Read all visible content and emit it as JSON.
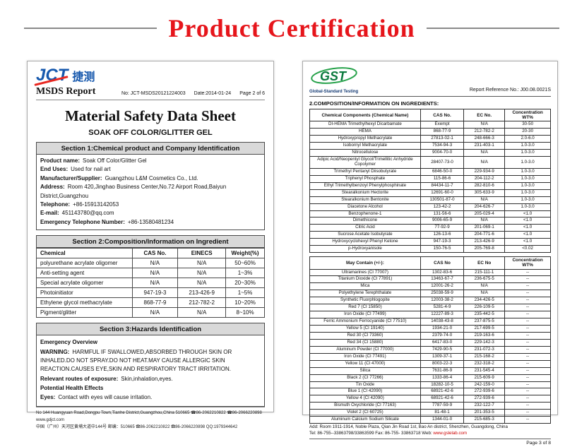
{
  "page": {
    "title": "Product Certification"
  },
  "left_doc": {
    "logo": {
      "jct": "JCT",
      "cn": "捷测"
    },
    "report_name": "MSDS Report",
    "meta": {
      "no": "No:  JCT-MSDS20121224003",
      "date": "Date:2014-01-24",
      "page": "Page 2 of 6"
    },
    "title": "Material Safety Data Sheet",
    "subtitle": "SOAK OFF COLOR/GLITTER GEL",
    "section1": {
      "header": "Section 1:Chemical product and Company Identification",
      "fields": [
        {
          "label": "Product name:",
          "value": "Soak Off Color/Glitter Gel"
        },
        {
          "label": "End Uses:",
          "value": "Used for nail art"
        },
        {
          "label": "Manufacturer/Supplier:",
          "value": "Guangzhou L&M Cosmetics Co., Ltd."
        },
        {
          "label": "Address:",
          "value": "Room 420,Jinghao Business Center,No.72 Airport Road,Baiyun District,Guangzhou"
        },
        {
          "label": "Telephone:",
          "value": "+86-15913142053"
        },
        {
          "label": "E-mail:",
          "value": "451143780@qq.com"
        },
        {
          "label": "Emergency Telephone Number:",
          "value": "+86-13580481234"
        }
      ]
    },
    "section2": {
      "header": "Section 2:Composition/Information on Ingredient",
      "table": {
        "headers": [
          "Chemical",
          "CAS No.",
          "EINECS",
          "Weight(%)"
        ],
        "rows": [
          [
            "polyurethane acrylate oligomer",
            "N/A",
            "N/A",
            "50~60%"
          ],
          [
            "Anti-setting agent",
            "N/A",
            "N/A",
            "1~3%"
          ],
          [
            "Special acrylate oligomer",
            "N/A",
            "N/A",
            "20~30%"
          ],
          [
            "Photoinitiator",
            "947-19-3",
            "213-426-9",
            "1~5%"
          ],
          [
            "Ethylene glycol methacrylate",
            "868-77-9",
            "212-782-2",
            "10~20%"
          ],
          [
            "Pigment/glitter",
            "N/A",
            "N/A",
            "8~10%"
          ]
        ]
      }
    },
    "section3": {
      "header": "Section 3:Hazards Identification",
      "lines": [
        {
          "label": "Emergency Overview",
          "value": ""
        },
        {
          "label": "WARNING:",
          "value": "HARMFUL IF SWALLOWED,ABSORBED THROUGH SKIN OR INHALED.DO NOT SPRAY.DO NOT HEAT.MAY CAUSE ALLERGIC SKIN REACTION.CAUSES EYE,SKIN AND RESPIRATORY TRACT IRRITATION."
        },
        {
          "label": "Relevant routes of exposure:",
          "value": "Skin,inhalation,eyes."
        },
        {
          "label": "Potential Health Effects",
          "value": ""
        },
        {
          "label": "Eyes:",
          "value": "Contact with eyes will cause irritation."
        }
      ]
    },
    "footer": {
      "line1": "No 144 Huangyuan Road,Dongpu Town,Tianhe District,Guangzhou,China 510665    ☎86-2062210822    ☎86-2066220898    www.gdjct.com",
      "line2": "中国（广州）天河区黄埔大道中144号  邮编：510665  ☎86-2062210822  ☎86-2066220898  QQ:1979344642"
    }
  },
  "right_doc": {
    "logo": {
      "text": "GST",
      "subtitle": "Global-Standard Testing"
    },
    "ref_no": "Report Reference No.: J00.08.0021S",
    "section_title": "2.COMPOSITION/INFORMATION ON INGREDIENTS:",
    "table1": {
      "headers": [
        "Chemical Components (Chemical Name)",
        "CAS No.",
        "EC No.",
        "Concentration WT%"
      ],
      "rows": [
        [
          "DI-HEMA Trimethylhexyl Dicarbamate",
          "Exempt",
          "N/A",
          "30-50"
        ],
        [
          "HEMA",
          "868-77-9",
          "212-782-2",
          "20-30"
        ],
        [
          "Hydroxypropyl Methacrylate",
          "27813-02-1",
          "248-666-3",
          "2.0-6.0"
        ],
        [
          "Isobornyl Methacrylate",
          "7534-94-3",
          "231-403-1",
          "1.0-3.0"
        ],
        [
          "Nitrocellulose",
          "9004-70-0",
          "N/A",
          "1.0-3.0"
        ],
        [
          "Adipic Acid/Neopentyl Glycol/Trimellitic Anhydride Copolymer",
          "28407-73-0",
          "N/A",
          "1.0-3.0"
        ],
        [
          "Trimethyl Pentanyl Diisobutyrate",
          "6846-50-0",
          "229-934-9",
          "1.0-3.0"
        ],
        [
          "Triphenyl Phosphate",
          "115-86-6",
          "204-112-2",
          "1.0-3.0"
        ],
        [
          "Ethyl Trimethylbenzoyl Phenylphosphinate",
          "84434-11-7",
          "282-810-6",
          "1.0-3.0"
        ],
        [
          "Stearalkonium Hectorite",
          "12691-60-0",
          "305-633-9",
          "1.0-3.0"
        ],
        [
          "Stearalkonium Bentonite",
          "130501-87-0",
          "N/A",
          "1.0-3.0"
        ],
        [
          "Diacetone Alcohol",
          "123-42-2",
          "204-626-7",
          "1.0-3.0"
        ],
        [
          "Benzophenone-1",
          "131-56-6",
          "205-029-4",
          "<1.0"
        ],
        [
          "Dimethicone",
          "9006-65-9",
          "N/A",
          "<1.0"
        ],
        [
          "Citric Acid",
          "77-92-9",
          "201-069-1",
          "<1.0"
        ],
        [
          "Sucrose Acetate Isobutyrate",
          "126-13-6",
          "204-771-6",
          "<1.0"
        ],
        [
          "Hydroxycyclohexyl Phenyl Ketone",
          "947-19-3",
          "213-426-9",
          "<1.0"
        ],
        [
          "p-Hydroxyanisole",
          "150-76-5",
          "205-769-8",
          "<0.02"
        ]
      ]
    },
    "table2": {
      "headers": [
        "May Contain (+/-):",
        "CAS No",
        "EC No",
        "Concentration  WT%"
      ],
      "rows": [
        [
          "Ultramarines (CI 77007)",
          "1302-83-6",
          "215-111-1",
          "--"
        ],
        [
          "Titanium Dioxide (CI 77891)",
          "13463-67-7",
          "236-675-5",
          "--"
        ],
        [
          "Mica",
          "12001-26-2",
          "N/A",
          "--"
        ],
        [
          "Polyethylene Terephthalate",
          "25038-59-9",
          "N/A",
          "--"
        ],
        [
          "Synthetic Fluorphlogopite",
          "12003-38-2",
          "234-426-5",
          "--"
        ],
        [
          "Red 7 (CI 15850)",
          "5281-4-9",
          "226-109-5",
          "--"
        ],
        [
          "Iron Oxide (CI 77499)",
          "12227-89-3",
          "235-442-5",
          "--"
        ],
        [
          "Ferric Ammonium Ferrocyanide (CI 77510)",
          "14038-43-8",
          "237-875-5",
          "--"
        ],
        [
          "Yellow 5 (CI 19140)",
          "1934-21-0",
          "217-699-5",
          "--"
        ],
        [
          "Red 30 (CI 73360)",
          "2379-74-0",
          "219-163-6",
          "--"
        ],
        [
          "Red 34 (CI 15880)",
          "6417-83-0",
          "229-142-3",
          "--"
        ],
        [
          "Aluminum Powder (CI 77000)",
          "7429-90-5",
          "231-072-3",
          "--"
        ],
        [
          "Iron Oxide (CI 77491)",
          "1309-37-1",
          "215-168-2",
          "--"
        ],
        [
          "Yellow 11 (CI 47000)",
          "8003-22-3",
          "232-318-2",
          "--"
        ],
        [
          "Silica",
          "7631-86-9",
          "231-545-4",
          "--"
        ],
        [
          "Black 2 (CI 77266)",
          "1333-86-4",
          "215-609-9",
          "--"
        ],
        [
          "Tin Oxide",
          "18282-10-5",
          "242-159-0",
          "--"
        ],
        [
          "Blue 1 (CI 42090)",
          "68921-42-6",
          "272-939-6",
          "--"
        ],
        [
          "Yellow 4 (CI 42090)",
          "68921-42-6",
          "272-939-6",
          "--"
        ],
        [
          "Bismuth Oxychloride (CI 77163)",
          "7787-59-9",
          "232-122-7",
          "--"
        ],
        [
          "Violet 2 (CI 60725)",
          "81-48-1",
          "201-353-5",
          "--"
        ],
        [
          "Aluminum Calcium Sodium Silicate",
          "1344-01-0",
          "215-685-3",
          "--"
        ]
      ]
    },
    "footer": {
      "address": "Add: Room 1911-1914, Noble Plaza, Qian Jin Road 1st, Bao An district, Shenzhen, Guangdong, China",
      "tel": "Tel: 86-755--33863798/33863599   Fax: 86-755- 33863718   Web:",
      "web": "www.gslelab.com",
      "page": "Page 3 of 8"
    }
  }
}
